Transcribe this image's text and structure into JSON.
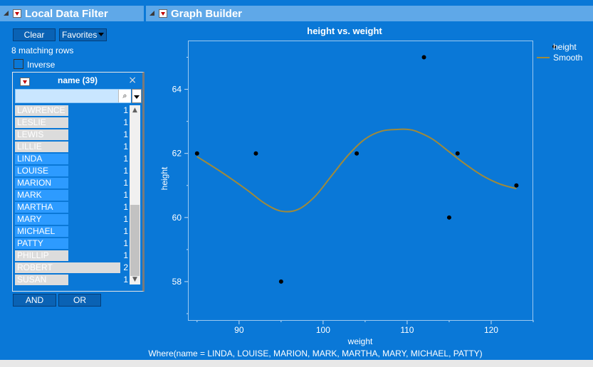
{
  "left_panel": {
    "title": "Local Data Filter",
    "clear_label": "Clear",
    "favorites_label": "Favorites",
    "matching_rows": "8 matching rows",
    "inverse_label": "Inverse",
    "inverse_checked": false,
    "filter": {
      "title": "name (39)",
      "close": "×",
      "search_value": "",
      "items": [
        {
          "name": "LAWRENCE",
          "count": "1",
          "selected": false
        },
        {
          "name": "LESLIE",
          "count": "1",
          "selected": false
        },
        {
          "name": "LEWIS",
          "count": "1",
          "selected": false
        },
        {
          "name": "LILLIE",
          "count": "1",
          "selected": false
        },
        {
          "name": "LINDA",
          "count": "1",
          "selected": true
        },
        {
          "name": "LOUISE",
          "count": "1",
          "selected": true
        },
        {
          "name": "MARION",
          "count": "1",
          "selected": true
        },
        {
          "name": "MARK",
          "count": "1",
          "selected": true
        },
        {
          "name": "MARTHA",
          "count": "1",
          "selected": true
        },
        {
          "name": "MARY",
          "count": "1",
          "selected": true
        },
        {
          "name": "MICHAEL",
          "count": "1",
          "selected": true
        },
        {
          "name": "PATTY",
          "count": "1",
          "selected": true
        },
        {
          "name": "PHILLIP",
          "count": "1",
          "selected": false
        },
        {
          "name": "ROBERT",
          "count": "2",
          "selected": false
        },
        {
          "name": "SUSAN",
          "count": "1",
          "selected": false
        }
      ]
    },
    "and_label": "AND",
    "or_label": "OR"
  },
  "graph_panel": {
    "title": "Graph Builder"
  },
  "where_clause": "Where(name = LINDA, LOUISE, MARION, MARK, MARTHA, MARY, MICHAEL, PATTY)",
  "colors": {
    "background": "#0a78d7",
    "selected_item": "#2d9bff",
    "smooth_line": "#a08a3a",
    "points": "#000000"
  },
  "chart_data": {
    "type": "scatter",
    "title": "height vs. weight",
    "xlabel": "weight",
    "ylabel": "height",
    "xlim": [
      84,
      125
    ],
    "ylim": [
      56.8,
      65.5
    ],
    "x_ticks": [
      90,
      100,
      110,
      120
    ],
    "y_ticks": [
      58,
      60,
      62,
      64
    ],
    "series": [
      {
        "name": "height",
        "type": "scatter",
        "x": [
          85,
          92,
          95,
          104,
          112,
          115,
          116,
          123
        ],
        "y": [
          62,
          62,
          58,
          62,
          65,
          60,
          62,
          61
        ]
      },
      {
        "name": "Smooth",
        "type": "line",
        "x": [
          85,
          88,
          91,
          93,
          95,
          97,
          99,
          101,
          103,
          105,
          107,
          109,
          110,
          111,
          113,
          115,
          117,
          119,
          121,
          123
        ],
        "y": [
          61.9,
          61.4,
          60.85,
          60.45,
          60.2,
          60.25,
          60.65,
          61.3,
          61.95,
          62.45,
          62.7,
          62.75,
          62.75,
          62.7,
          62.45,
          62.05,
          61.65,
          61.3,
          61.05,
          60.9
        ]
      }
    ],
    "legend": [
      "height",
      "Smooth"
    ],
    "legend_position": "right",
    "grid": false
  }
}
